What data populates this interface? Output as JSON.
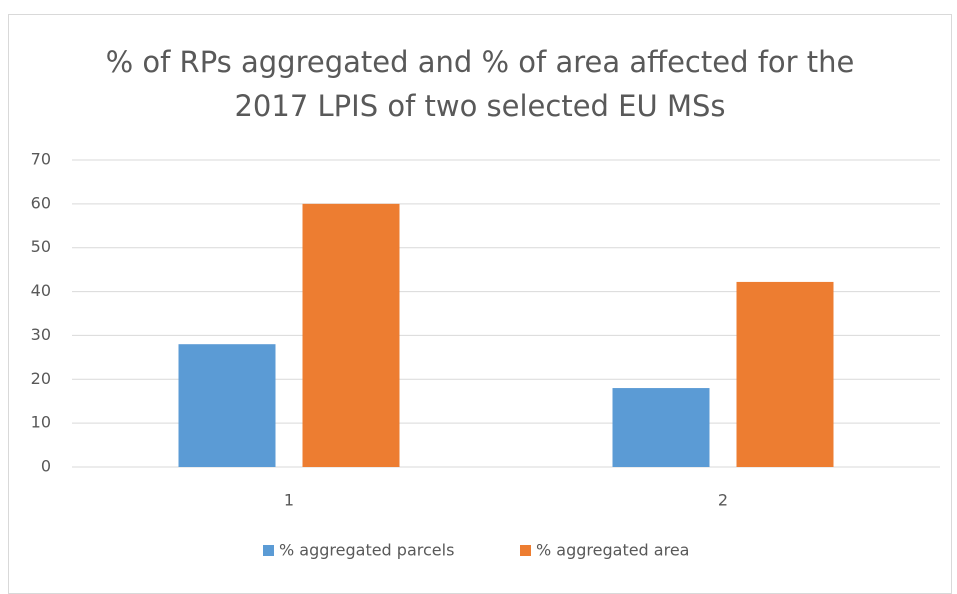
{
  "chart_data": {
    "type": "bar",
    "title": "% of RPs aggregated and % of area affected for the 2017 LPIS of two selected EU MSs",
    "categories": [
      "1",
      "2"
    ],
    "series": [
      {
        "name": "% aggregated parcels",
        "color": "#5b9bd5",
        "values": [
          28,
          18
        ]
      },
      {
        "name": "% aggregated area",
        "color": "#ed7d31",
        "values": [
          60,
          42.2
        ]
      }
    ],
    "ylim": [
      0,
      70
    ],
    "yticks": [
      0,
      10,
      20,
      30,
      40,
      50,
      60,
      70
    ],
    "grid": true,
    "legend": "bottom"
  }
}
